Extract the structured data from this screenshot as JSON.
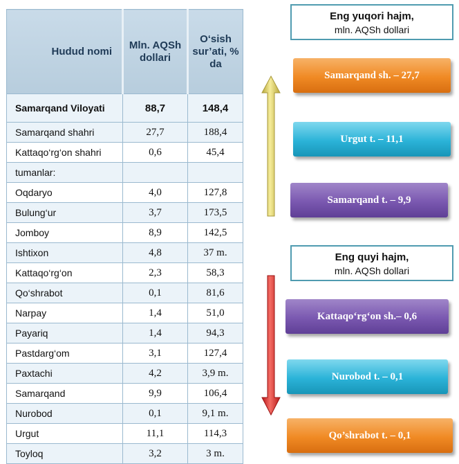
{
  "table": {
    "headers": {
      "region": "Hudud nomi",
      "value": "Mln. AQSh dollari",
      "growth": "O‘sish sur’ati, % da"
    },
    "rows": [
      {
        "name": "Samarqand Viloyati",
        "value": "88,7",
        "growth": "148,4",
        "type": "total"
      },
      {
        "name": "Samarqand  shahri",
        "value": "27,7",
        "growth": "188,4"
      },
      {
        "name": "Kattaqo‘rg‘on shahri",
        "value": "0,6",
        "growth": "45,4"
      },
      {
        "name": "tumanlar:",
        "value": "",
        "growth": ""
      },
      {
        "name": "Oqdaryo",
        "value": "4,0",
        "growth": "127,8"
      },
      {
        "name": "Bulung‘ur",
        "value": "3,7",
        "growth": "173,5"
      },
      {
        "name": "Jomboy",
        "value": "8,9",
        "growth": "142,5"
      },
      {
        "name": "Ishtixon",
        "value": "4,8",
        "growth": "37 m."
      },
      {
        "name": "Kattaqo‘rg‘on",
        "value": "2,3",
        "growth": "58,3"
      },
      {
        "name": "Qo‘shrabot",
        "value": "0,1",
        "growth": "81,6"
      },
      {
        "name": "Narpay",
        "value": "1,4",
        "growth": "51,0"
      },
      {
        "name": "Payariq",
        "value": "1,4",
        "growth": "94,3"
      },
      {
        "name": "Pastdarg‘om",
        "value": "3,1",
        "growth": "127,4"
      },
      {
        "name": "Paxtachi",
        "value": "4,2",
        "growth": "3,9 m."
      },
      {
        "name": "Samarqand",
        "value": "9,9",
        "growth": "106,4"
      },
      {
        "name": "Nurobod",
        "value": "0,1",
        "growth": "9,1 m."
      },
      {
        "name": "Urgut",
        "value": "11,1",
        "growth": "114,3"
      },
      {
        "name": "Toyloq",
        "value": "3,2",
        "growth": "3 m."
      }
    ]
  },
  "top": {
    "title": "Eng yuqori hajm,",
    "unit": "mln. AQSh dollari",
    "items": [
      {
        "label": "Samarqand sh. – 27,7",
        "color": "#f08a24"
      },
      {
        "label": "Urgut t. –  11,1",
        "color": "#2bb3d8"
      },
      {
        "label": "Samarqand t. –  9,9",
        "color": "#7a58b0"
      }
    ]
  },
  "bottom": {
    "title": "Eng quyi hajm,",
    "unit": "mln. AQSh dollari",
    "items": [
      {
        "label": "Kattaqo‘rg‘on sh.– 0,6",
        "color": "#7a58b0"
      },
      {
        "label": "Nurobod t. – 0,1",
        "color": "#2bb3d8"
      },
      {
        "label": "Qo’shrabot t. – 0,1",
        "color": "#f08a24"
      }
    ]
  },
  "arrows": {
    "up_color": "#d6c866",
    "down_color": "#e0302a"
  }
}
